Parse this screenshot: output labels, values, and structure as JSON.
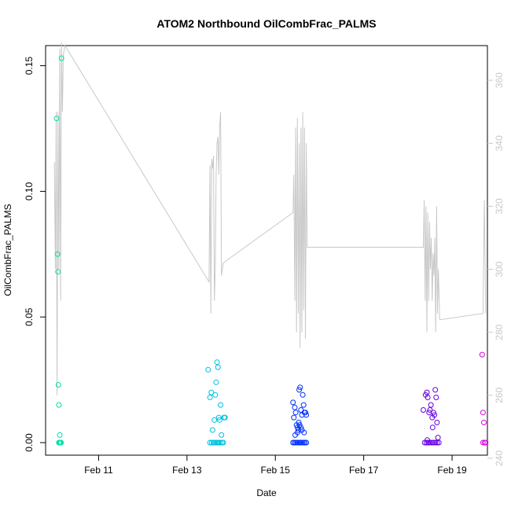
{
  "chart_data": {
    "type": "scatter",
    "title": "ATOM2 Northbound OilCombFrac_PALMS",
    "xlabel": "Date",
    "ylabel": "OilCombFrac_PALMS",
    "x_unit": "days since Feb 10",
    "xlim": [
      9.8,
      19.8
    ],
    "ylim": [
      -0.005,
      0.158
    ],
    "y2lim": [
      241,
      371
    ],
    "x_ticks": [
      {
        "value": 11,
        "label": "Feb 11"
      },
      {
        "value": 13,
        "label": "Feb 13"
      },
      {
        "value": 15,
        "label": "Feb 15"
      },
      {
        "value": 17,
        "label": "Feb 17"
      },
      {
        "value": 19,
        "label": "Feb 19"
      }
    ],
    "y_ticks": [
      {
        "value": 0.0,
        "label": "0.00"
      },
      {
        "value": 0.05,
        "label": "0.05"
      },
      {
        "value": 0.1,
        "label": "0.10"
      },
      {
        "value": 0.15,
        "label": "0.15"
      }
    ],
    "y2_ticks": [
      {
        "value": 240,
        "label": "240"
      },
      {
        "value": 260,
        "label": "260"
      },
      {
        "value": 280,
        "label": "280"
      },
      {
        "value": 300,
        "label": "300"
      },
      {
        "value": 320,
        "label": "320"
      },
      {
        "value": 340,
        "label": "340"
      },
      {
        "value": 360,
        "label": "360"
      }
    ],
    "colors": {
      "line": "#c8c8c8",
      "flight1": "#00e0a8",
      "flight2": "#00c0e0",
      "flight3": "#0030ff",
      "flight4": "#6600e0",
      "flight5": "#e000e0"
    },
    "grid": false,
    "scatter_groups": [
      {
        "color": "#00e0a8",
        "x": [
          10.05,
          10.07,
          10.08,
          10.09,
          10.1,
          10.12,
          10.13,
          10.14,
          10.15,
          10.1,
          10.12,
          10.14,
          10.12,
          10.14,
          10.16
        ],
        "y": [
          0.129,
          0.075,
          0.068,
          0.023,
          0.015,
          0.003,
          0.0,
          0.0,
          0.0,
          0.0,
          0.0,
          0.0,
          0.0,
          0.0,
          0.153
        ]
      },
      {
        "color": "#00c0e0",
        "x": [
          13.48,
          13.52,
          13.55,
          13.58,
          13.62,
          13.64,
          13.66,
          13.68,
          13.7,
          13.72,
          13.74,
          13.76,
          13.78,
          13.52,
          13.56,
          13.6,
          13.64,
          13.68,
          13.72,
          13.76,
          13.8,
          13.82,
          13.84,
          13.86,
          13.6,
          13.7
        ],
        "y": [
          0.029,
          0.018,
          0.02,
          0.005,
          0.009,
          0.019,
          0.024,
          0.032,
          0.03,
          0.01,
          0.009,
          0.015,
          0.003,
          0.0,
          0.0,
          0.0,
          0.0,
          0.0,
          0.0,
          0.0,
          0.0,
          0.0,
          0.01,
          0.01,
          0.0,
          0.0
        ]
      },
      {
        "color": "#0030ff",
        "x": [
          15.4,
          15.42,
          15.44,
          15.46,
          15.48,
          15.5,
          15.52,
          15.54,
          15.56,
          15.58,
          15.6,
          15.62,
          15.64,
          15.66,
          15.68,
          15.7,
          15.45,
          15.5,
          15.55,
          15.6,
          15.65,
          15.4,
          15.43,
          15.46,
          15.49,
          15.52,
          15.55,
          15.58,
          15.61,
          15.64,
          15.67,
          15.7,
          15.53,
          15.58
        ],
        "y": [
          0.016,
          0.01,
          0.014,
          0.012,
          0.007,
          0.006,
          0.005,
          0.021,
          0.022,
          0.013,
          0.011,
          0.019,
          0.015,
          0.012,
          0.012,
          0.011,
          0.003,
          0.004,
          0.007,
          0.005,
          0.004,
          0.0,
          0.0,
          0.0,
          0.0,
          0.0,
          0.0,
          0.0,
          0.0,
          0.0,
          0.0,
          0.0,
          0.008,
          0.006
        ]
      },
      {
        "color": "#6600e0",
        "x": [
          18.35,
          18.4,
          18.43,
          18.45,
          18.48,
          18.5,
          18.52,
          18.55,
          18.58,
          18.6,
          18.62,
          18.64,
          18.66,
          18.68,
          18.38,
          18.42,
          18.46,
          18.5,
          18.54,
          18.58,
          18.62,
          18.66,
          18.7,
          18.44,
          18.56
        ],
        "y": [
          0.013,
          0.019,
          0.02,
          0.018,
          0.012,
          0.013,
          0.015,
          0.01,
          0.012,
          0.011,
          0.021,
          0.018,
          0.008,
          0.002,
          0.0,
          0.0,
          0.0,
          0.0,
          0.0,
          0.0,
          0.0,
          0.0,
          0.0,
          0.001,
          0.006
        ]
      },
      {
        "color": "#e000e0",
        "x": [
          19.68,
          19.7,
          19.72,
          19.74,
          19.7,
          19.76
        ],
        "y": [
          0.035,
          0.012,
          0.008,
          0.0,
          0.0,
          0.0
        ]
      }
    ],
    "line_series": {
      "axis": "right",
      "x": [
        10.0,
        10.02,
        10.04,
        10.06,
        10.08,
        10.1,
        10.12,
        10.14,
        10.16,
        10.18,
        10.2,
        10.24,
        13.5,
        13.52,
        13.54,
        13.56,
        13.58,
        13.6,
        13.62,
        13.64,
        13.66,
        13.68,
        13.7,
        13.72,
        13.74,
        13.76,
        13.78,
        13.82,
        15.4,
        15.42,
        15.44,
        15.46,
        15.48,
        15.5,
        15.52,
        15.54,
        15.56,
        15.58,
        15.6,
        15.62,
        15.64,
        15.66,
        15.68,
        15.7,
        15.72,
        18.35,
        18.37,
        18.39,
        18.41,
        18.43,
        18.45,
        18.47,
        18.49,
        18.51,
        18.53,
        18.55,
        18.57,
        18.59,
        18.61,
        18.63,
        18.65,
        18.67,
        18.69,
        18.72,
        19.7,
        19.73,
        19.76
      ],
      "y": [
        334,
        300,
        350,
        260,
        350,
        300,
        370,
        290,
        372,
        350,
        368,
        371,
        296,
        333,
        286,
        335,
        332,
        336,
        290,
        300,
        330,
        340,
        342,
        330,
        345,
        350,
        298,
        302,
        318,
        330,
        290,
        345,
        280,
        348,
        286,
        340,
        275,
        345,
        280,
        350,
        287,
        345,
        278,
        340,
        307,
        307,
        322,
        290,
        320,
        280,
        318,
        290,
        315,
        300,
        310,
        290,
        305,
        298,
        310,
        280,
        320,
        286,
        300,
        284,
        286,
        322,
        286
      ]
    }
  }
}
